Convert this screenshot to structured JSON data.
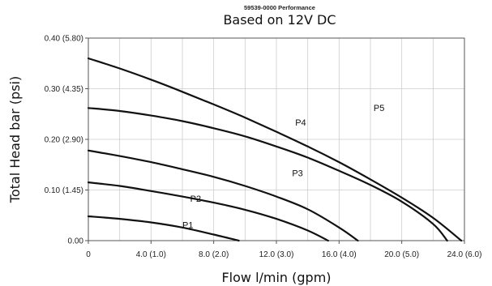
{
  "chart_data": {
    "type": "line",
    "title": "59539-0000 Performance",
    "subtitle": "Based on 12V DC",
    "xlabel": "Flow l/min (gpm)",
    "ylabel": "Total Head bar (psi)",
    "xlim": [
      0,
      24
    ],
    "ylim": [
      0,
      0.4
    ],
    "x_ticks": [
      {
        "value": 0,
        "label": "0"
      },
      {
        "value": 4,
        "label": "4.0 (1.0)"
      },
      {
        "value": 8,
        "label": "8.0 (2.0)"
      },
      {
        "value": 12,
        "label": "12.0 (3.0)"
      },
      {
        "value": 16,
        "label": "16.0 (4.0)"
      },
      {
        "value": 20,
        "label": "20.0 (5.0)"
      },
      {
        "value": 24,
        "label": "24.0 (6.0)"
      }
    ],
    "y_ticks": [
      {
        "value": 0,
        "label": "0.00"
      },
      {
        "value": 0.1,
        "label": "0.10 (1.45)"
      },
      {
        "value": 0.2,
        "label": "0.20 (2.90)"
      },
      {
        "value": 0.3,
        "label": "0.30 (4.35)"
      },
      {
        "value": 0.4,
        "label": "0.40 (5.80)"
      }
    ],
    "grid": true,
    "colors": {
      "line": "#111111",
      "grid": "#cccccc",
      "axis": "#555555"
    },
    "series": [
      {
        "name": "P1",
        "label_at": [
          6,
          0.025
        ],
        "x": [
          0,
          2,
          4,
          6,
          8,
          9.6
        ],
        "y": [
          0.048,
          0.043,
          0.036,
          0.026,
          0.012,
          0
        ]
      },
      {
        "name": "P2",
        "label_at": [
          6.5,
          0.077
        ],
        "x": [
          0,
          2,
          4,
          6,
          8,
          10,
          12,
          14,
          15.3
        ],
        "y": [
          0.115,
          0.108,
          0.098,
          0.087,
          0.075,
          0.061,
          0.043,
          0.02,
          0
        ]
      },
      {
        "name": "P3",
        "label_at": [
          13,
          0.127
        ],
        "x": [
          0,
          2,
          4,
          6,
          8,
          10,
          12,
          14,
          16,
          17.2
        ],
        "y": [
          0.178,
          0.167,
          0.155,
          0.141,
          0.126,
          0.108,
          0.087,
          0.062,
          0.026,
          0
        ]
      },
      {
        "name": "P4",
        "label_at": [
          13.2,
          0.227
        ],
        "x": [
          0,
          2,
          4,
          6,
          8,
          10,
          12,
          14,
          16,
          18,
          20,
          22,
          22.9
        ],
        "y": [
          0.262,
          0.256,
          0.247,
          0.236,
          0.222,
          0.206,
          0.186,
          0.164,
          0.138,
          0.11,
          0.077,
          0.033,
          0
        ]
      },
      {
        "name": "P5",
        "label_at": [
          18.2,
          0.256
        ],
        "x": [
          0,
          2,
          4,
          6,
          8,
          10,
          12,
          14,
          16,
          18,
          20,
          22,
          23.8
        ],
        "y": [
          0.36,
          0.34,
          0.318,
          0.294,
          0.269,
          0.243,
          0.215,
          0.186,
          0.155,
          0.121,
          0.085,
          0.045,
          0
        ]
      }
    ]
  }
}
